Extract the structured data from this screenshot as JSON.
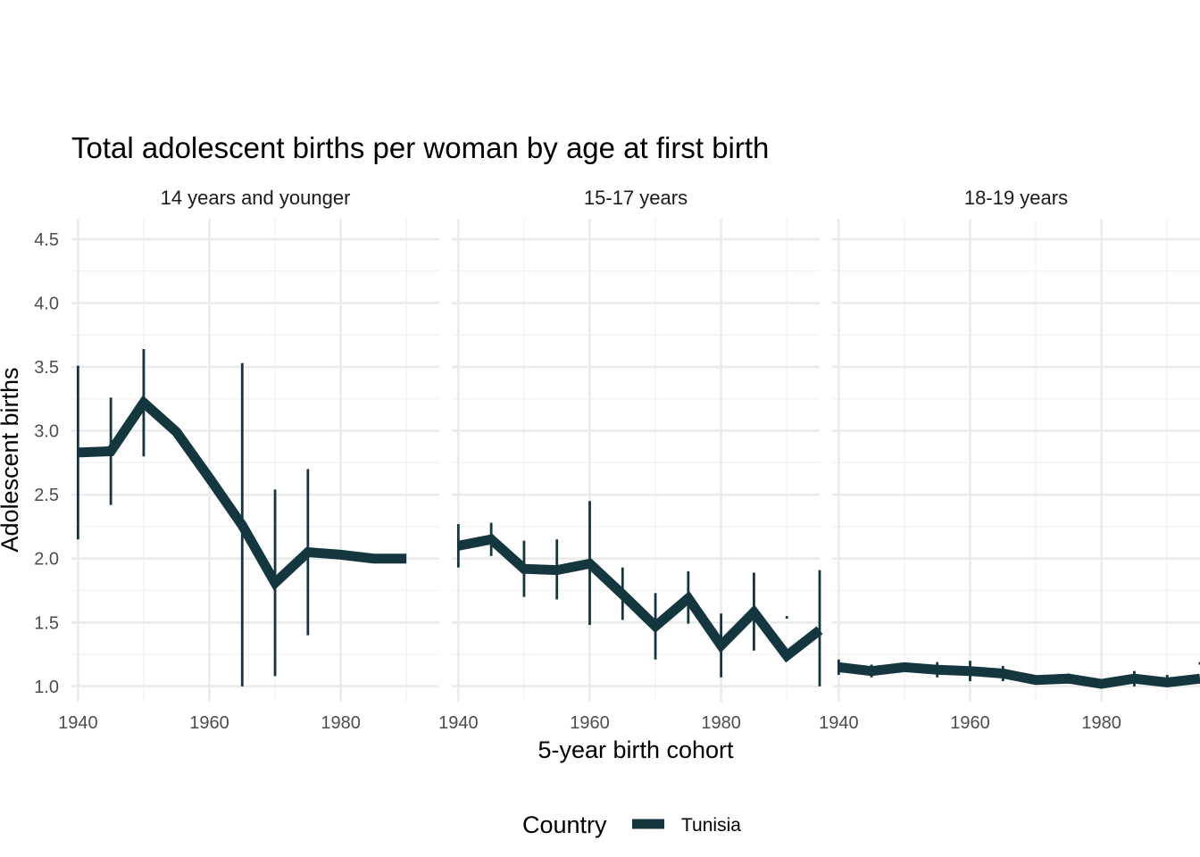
{
  "chart_data": {
    "type": "line",
    "title": "Total adolescent births per woman by age at first birth",
    "xlabel": "5-year birth cohort",
    "ylabel": "Adolescent births",
    "xlim": [
      1939,
      1995
    ],
    "ylim": [
      0.88,
      4.66
    ],
    "x_ticks": [
      1940,
      1960,
      1980
    ],
    "y_ticks": [
      1.0,
      1.5,
      2.0,
      2.5,
      3.0,
      3.5,
      4.0,
      4.5
    ],
    "grid": true,
    "legend": {
      "title": "Country",
      "position": "bottom",
      "entries": [
        "Tunisia"
      ]
    },
    "colors": {
      "Tunisia": "#14363f"
    },
    "panels": [
      {
        "label": "14 years and younger",
        "series": [
          {
            "name": "Tunisia",
            "points": [
              {
                "x": 1940,
                "y": 2.83,
                "low": 2.15,
                "high": 3.51
              },
              {
                "x": 1945,
                "y": 2.84,
                "low": 2.42,
                "high": 3.26
              },
              {
                "x": 1950,
                "y": 3.22,
                "low": 2.8,
                "high": 3.64
              },
              {
                "x": 1955,
                "y": 2.99
              },
              {
                "x": 1960,
                "y": 2.63
              },
              {
                "x": 1965,
                "y": 2.26,
                "low": 1.0,
                "high": 3.53
              },
              {
                "x": 1970,
                "y": 1.81,
                "low": 1.08,
                "high": 2.54
              },
              {
                "x": 1975,
                "y": 2.05,
                "low": 1.4,
                "high": 2.7
              },
              {
                "x": 1980,
                "y": 2.03
              },
              {
                "x": 1985,
                "y": 2.0
              },
              {
                "x": 1990,
                "y": 2.0
              }
            ]
          }
        ]
      },
      {
        "label": "15-17 years",
        "series": [
          {
            "name": "Tunisia",
            "points": [
              {
                "x": 1940,
                "y": 2.1,
                "low": 1.93,
                "high": 2.27
              },
              {
                "x": 1945,
                "y": 2.15,
                "low": 2.02,
                "high": 2.28
              },
              {
                "x": 1950,
                "y": 1.92,
                "low": 1.7,
                "high": 2.14
              },
              {
                "x": 1955,
                "y": 1.91,
                "low": 1.68,
                "high": 2.15
              },
              {
                "x": 1960,
                "y": 1.96,
                "low": 1.48,
                "high": 2.45
              },
              {
                "x": 1965,
                "y": 1.72,
                "low": 1.52,
                "high": 1.93
              },
              {
                "x": 1970,
                "y": 1.47,
                "low": 1.21,
                "high": 1.73
              },
              {
                "x": 1975,
                "y": 1.69,
                "low": 1.49,
                "high": 1.9
              },
              {
                "x": 1980,
                "y": 1.32,
                "low": 1.07,
                "high": 1.57
              },
              {
                "x": 1985,
                "y": 1.58,
                "low": 1.28,
                "high": 1.89
              },
              {
                "x": 1990,
                "y": 1.24,
                "low": 1.53,
                "high": 1.55
              },
              {
                "x": 1995,
                "y": 1.44,
                "low": 1.0,
                "high": 1.91
              }
            ]
          }
        ]
      },
      {
        "label": "18-19 years",
        "series": [
          {
            "name": "Tunisia",
            "points": [
              {
                "x": 1940,
                "y": 1.15,
                "low": 1.09,
                "high": 1.21
              },
              {
                "x": 1945,
                "y": 1.12,
                "low": 1.07,
                "high": 1.17
              },
              {
                "x": 1950,
                "y": 1.15,
                "low": 1.12,
                "high": 1.18
              },
              {
                "x": 1955,
                "y": 1.13,
                "low": 1.07,
                "high": 1.19
              },
              {
                "x": 1960,
                "y": 1.12,
                "low": 1.04,
                "high": 1.2
              },
              {
                "x": 1965,
                "y": 1.1,
                "low": 1.04,
                "high": 1.16
              },
              {
                "x": 1970,
                "y": 1.05
              },
              {
                "x": 1975,
                "y": 1.06,
                "low": 1.02,
                "high": 1.1
              },
              {
                "x": 1980,
                "y": 1.02
              },
              {
                "x": 1985,
                "y": 1.06,
                "low": 1.0,
                "high": 1.12
              },
              {
                "x": 1990,
                "y": 1.03,
                "low": 1.01,
                "high": 1.09
              },
              {
                "x": 1995,
                "y": 1.06,
                "low": 1.17,
                "high": 1.19
              }
            ]
          }
        ]
      }
    ]
  }
}
